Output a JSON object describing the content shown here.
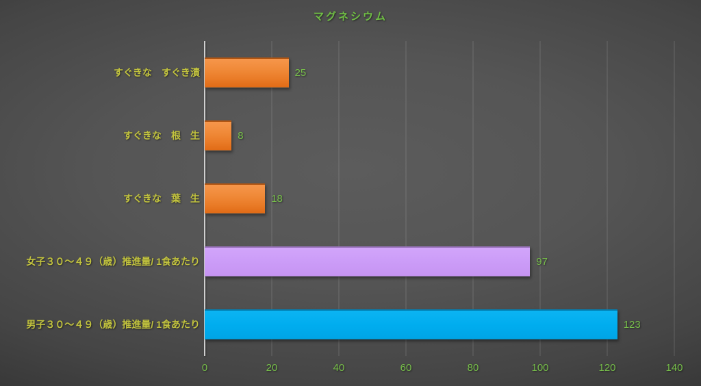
{
  "title": "マグネシウム",
  "colors": {
    "background_center": "#5c5c5c",
    "background_edge": "#252525",
    "title_text": "#6fbe44",
    "category_label_text": "#c2c33e",
    "value_label_text": "#77bf4a",
    "axis_tick_text": "#77bf4a",
    "axis_line": "#cfcfcf",
    "gridline": "#6e6e6e",
    "bar_orange": "#ed7d31",
    "bar_purple": "#cc9df8",
    "bar_blue": "#00adef"
  },
  "chart_data": {
    "type": "bar",
    "orientation": "horizontal",
    "title": "マグネシウム",
    "categories": [
      "すぐきな　すぐき漬",
      "すぐきな　根　生",
      "すぐきな　葉　生",
      "女子３０～４９（歳）推進量/ 1食あたり",
      "男子３０～４９（歳）推進量/ 1食あたり"
    ],
    "values": [
      25,
      8,
      18,
      97,
      123
    ],
    "value_labels": [
      "25",
      "8",
      "18",
      "97",
      "123"
    ],
    "bar_color_classes": [
      "orange",
      "orange",
      "orange",
      "purple",
      "blue"
    ],
    "bar_colors": [
      "#ed7d31",
      "#ed7d31",
      "#ed7d31",
      "#cc9df8",
      "#00adef"
    ],
    "xlabel": "",
    "ylabel": "",
    "xlim": [
      0,
      140
    ],
    "xticks": [
      0,
      20,
      40,
      60,
      80,
      100,
      120,
      140
    ],
    "grid": true,
    "legend": false,
    "value_labels_shown": true
  }
}
